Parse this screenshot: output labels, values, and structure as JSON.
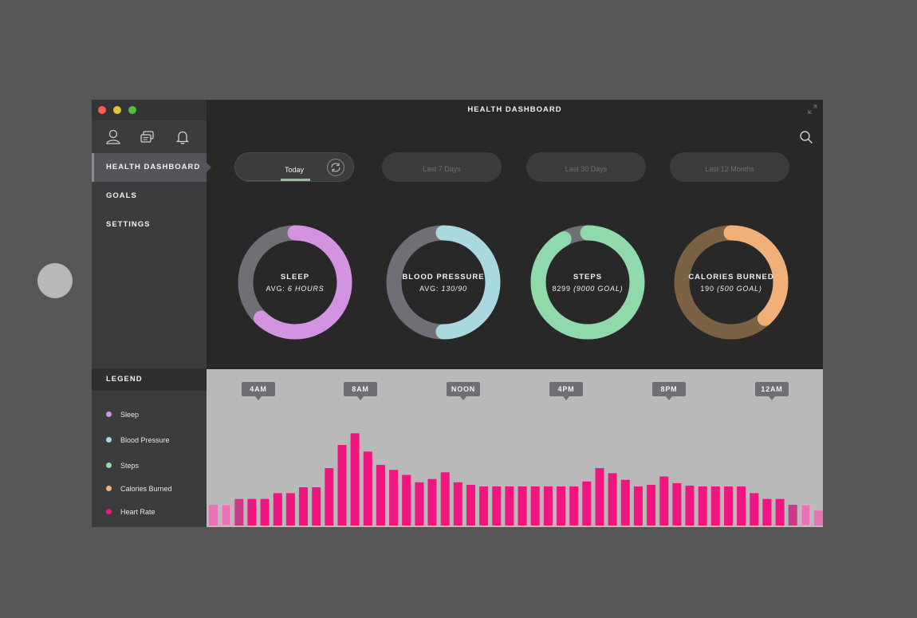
{
  "window": {
    "title": "HEALTH DASHBOARD"
  },
  "sidebar": {
    "icons": [
      "user-icon",
      "chat-icon",
      "bell-icon"
    ],
    "nav": [
      {
        "label": "HEALTH DASHBOARD",
        "active": true
      },
      {
        "label": "GOALS",
        "active": false
      },
      {
        "label": "SETTINGS",
        "active": false
      }
    ]
  },
  "legend": {
    "title": "LEGEND",
    "items": [
      {
        "label": "Sleep",
        "color": "#d393e0"
      },
      {
        "label": "Blood Pressure",
        "color": "#a9d8df"
      },
      {
        "label": "Steps",
        "color": "#8fd9aa"
      },
      {
        "label": "Calories Burned",
        "color": "#f1b077"
      },
      {
        "label": "Heart Rate",
        "color": "#f0157f"
      }
    ]
  },
  "ranges": [
    {
      "label": "Today",
      "active": true
    },
    {
      "label": "Last 7 Days",
      "active": false
    },
    {
      "label": "Last 30 Days",
      "active": false
    },
    {
      "label": "Last 12 Months",
      "active": false
    }
  ],
  "rings": [
    {
      "label": "SLEEP",
      "sub_prefix": "AVG: ",
      "sub_value": "6 HOURS",
      "progress": 0.62,
      "color": "#d393e0",
      "track": "#6f6f76"
    },
    {
      "label": "BLOOD PRESSURE",
      "sub_prefix": "AVG: ",
      "sub_value": "130/90",
      "progress": 0.5,
      "color": "#a9d8df",
      "track": "#6f6f76"
    },
    {
      "label": "STEPS",
      "sub_prefix": "8299 ",
      "sub_value": "(9000 GOAL)",
      "progress": 0.92,
      "color": "#8fd9aa",
      "track": "#6f6f76"
    },
    {
      "label": "CALORIES BURNED",
      "sub_prefix": "190 ",
      "sub_value": "(500 GOAL)",
      "progress": 0.38,
      "color": "#f1b077",
      "track": "#7c6244"
    }
  ],
  "chart_data": {
    "type": "bar",
    "title": "",
    "series": [
      {
        "name": "Heart Rate",
        "values": [
          25,
          25,
          32,
          32,
          32,
          39,
          39,
          46,
          46,
          69,
          97,
          111,
          89,
          73,
          67,
          61,
          52,
          56,
          64,
          52,
          49,
          47,
          47,
          47,
          47,
          47,
          47,
          47,
          47,
          53,
          69,
          63,
          55,
          47,
          49,
          59,
          51,
          48,
          47,
          47,
          47,
          47,
          39,
          32,
          32,
          25,
          25,
          18
        ]
      }
    ],
    "x_tick_labels": [
      "4AM",
      "8AM",
      "NOON",
      "4PM",
      "8PM",
      "12AM"
    ],
    "ylim": [
      0,
      120
    ],
    "bar_color": "#f0157f"
  }
}
